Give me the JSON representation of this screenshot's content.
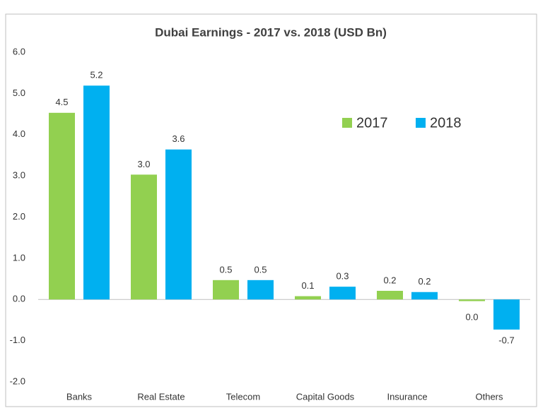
{
  "chart_data": {
    "type": "bar",
    "title": "Dubai Earnings - 2017 vs. 2018 (USD Bn)",
    "categories": [
      "Banks",
      "Real Estate",
      "Telecom",
      "Capital Goods",
      "Insurance",
      "Others"
    ],
    "series": [
      {
        "name": "2017",
        "color": "#92d050",
        "values": [
          4.53,
          3.03,
          0.47,
          0.08,
          0.21,
          -0.04
        ],
        "value_labels": [
          "4.5",
          "3.0",
          "0.5",
          "0.1",
          "0.2",
          "0.0"
        ]
      },
      {
        "name": "2018",
        "color": "#00b0f0",
        "values": [
          5.19,
          3.64,
          0.47,
          0.31,
          0.18,
          -0.73
        ],
        "value_labels": [
          "5.2",
          "3.6",
          "0.5",
          "0.3",
          "0.2",
          "-0.7"
        ]
      }
    ],
    "ylim": [
      -2,
      6
    ],
    "yticks": [
      {
        "value": -2,
        "label": "-2.0"
      },
      {
        "value": -1,
        "label": "-1.0"
      },
      {
        "value": 0,
        "label": "0.0"
      },
      {
        "value": 1,
        "label": "1.0"
      },
      {
        "value": 2,
        "label": "2.0"
      },
      {
        "value": 3,
        "label": "3.0"
      },
      {
        "value": 4,
        "label": "4.0"
      },
      {
        "value": 5,
        "label": "5.0"
      },
      {
        "value": 6,
        "label": "6.0"
      }
    ],
    "legend": "upper right"
  }
}
